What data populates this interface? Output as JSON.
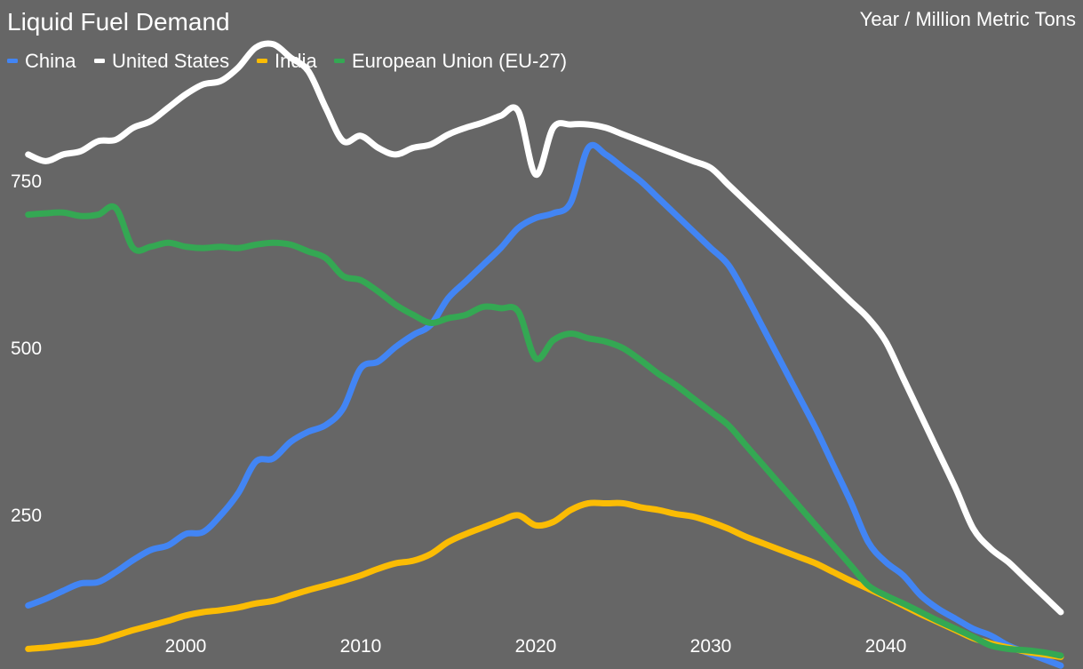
{
  "chart_data": {
    "type": "line",
    "title": "Liquid Fuel Demand",
    "subtitle": "Year / Million Metric Tons",
    "xlim": [
      1991,
      2050
    ],
    "ylim": [
      0,
      960
    ],
    "x_ticks": [
      2000,
      2010,
      2020,
      2030,
      2040
    ],
    "x_tick_labels": [
      "2000",
      "2010",
      "2020",
      "2030",
      "2040"
    ],
    "y_ticks": [
      250,
      500,
      750
    ],
    "y_tick_labels": [
      "250",
      "500",
      "750"
    ],
    "grid": false,
    "legend_position": "top-left",
    "series": [
      {
        "name": "China",
        "color": "#4285F4",
        "points": [
          [
            1991,
            115
          ],
          [
            1992,
            125
          ],
          [
            1993,
            137
          ],
          [
            1994,
            148
          ],
          [
            1995,
            150
          ],
          [
            1996,
            165
          ],
          [
            1997,
            183
          ],
          [
            1998,
            198
          ],
          [
            1999,
            205
          ],
          [
            2000,
            222
          ],
          [
            2001,
            225
          ],
          [
            2002,
            250
          ],
          [
            2003,
            283
          ],
          [
            2004,
            330
          ],
          [
            2005,
            335
          ],
          [
            2006,
            360
          ],
          [
            2007,
            375
          ],
          [
            2008,
            385
          ],
          [
            2009,
            410
          ],
          [
            2010,
            470
          ],
          [
            2011,
            480
          ],
          [
            2012,
            502
          ],
          [
            2013,
            520
          ],
          [
            2014,
            535
          ],
          [
            2015,
            575
          ],
          [
            2016,
            600
          ],
          [
            2017,
            625
          ],
          [
            2018,
            650
          ],
          [
            2019,
            680
          ],
          [
            2020,
            695
          ],
          [
            2021,
            702
          ],
          [
            2022,
            718
          ],
          [
            2023,
            800
          ],
          [
            2024,
            790
          ],
          [
            2025,
            770
          ],
          [
            2026,
            750
          ],
          [
            2027,
            725
          ],
          [
            2028,
            700
          ],
          [
            2029,
            675
          ],
          [
            2030,
            650
          ],
          [
            2031,
            625
          ],
          [
            2032,
            580
          ],
          [
            2033,
            530
          ],
          [
            2034,
            480
          ],
          [
            2035,
            430
          ],
          [
            2036,
            380
          ],
          [
            2037,
            325
          ],
          [
            2038,
            270
          ],
          [
            2039,
            210
          ],
          [
            2040,
            180
          ],
          [
            2041,
            160
          ],
          [
            2042,
            130
          ],
          [
            2043,
            110
          ],
          [
            2044,
            95
          ],
          [
            2045,
            80
          ],
          [
            2046,
            70
          ],
          [
            2047,
            55
          ],
          [
            2048,
            45
          ],
          [
            2049,
            35
          ],
          [
            2050,
            25
          ]
        ]
      },
      {
        "name": "United States",
        "color": "#FFFFFF",
        "points": [
          [
            1991,
            790
          ],
          [
            1992,
            780
          ],
          [
            1993,
            790
          ],
          [
            1994,
            795
          ],
          [
            1995,
            810
          ],
          [
            1996,
            812
          ],
          [
            1997,
            830
          ],
          [
            1998,
            840
          ],
          [
            1999,
            860
          ],
          [
            2000,
            880
          ],
          [
            2001,
            895
          ],
          [
            2002,
            900
          ],
          [
            2003,
            920
          ],
          [
            2004,
            950
          ],
          [
            2005,
            955
          ],
          [
            2006,
            935
          ],
          [
            2007,
            915
          ],
          [
            2008,
            860
          ],
          [
            2009,
            810
          ],
          [
            2010,
            818
          ],
          [
            2011,
            800
          ],
          [
            2012,
            790
          ],
          [
            2013,
            800
          ],
          [
            2014,
            805
          ],
          [
            2015,
            820
          ],
          [
            2016,
            830
          ],
          [
            2017,
            838
          ],
          [
            2018,
            848
          ],
          [
            2019,
            855
          ],
          [
            2020,
            760
          ],
          [
            2021,
            830
          ],
          [
            2022,
            835
          ],
          [
            2023,
            835
          ],
          [
            2024,
            830
          ],
          [
            2025,
            820
          ],
          [
            2026,
            810
          ],
          [
            2027,
            800
          ],
          [
            2028,
            790
          ],
          [
            2029,
            780
          ],
          [
            2030,
            770
          ],
          [
            2031,
            745
          ],
          [
            2032,
            720
          ],
          [
            2033,
            695
          ],
          [
            2034,
            670
          ],
          [
            2035,
            645
          ],
          [
            2036,
            620
          ],
          [
            2037,
            595
          ],
          [
            2038,
            570
          ],
          [
            2039,
            545
          ],
          [
            2040,
            510
          ],
          [
            2041,
            455
          ],
          [
            2042,
            400
          ],
          [
            2043,
            345
          ],
          [
            2044,
            290
          ],
          [
            2045,
            230
          ],
          [
            2046,
            200
          ],
          [
            2047,
            180
          ],
          [
            2048,
            155
          ],
          [
            2049,
            130
          ],
          [
            2050,
            105
          ]
        ]
      },
      {
        "name": "India",
        "color": "#FBBC04",
        "points": [
          [
            1991,
            50
          ],
          [
            1992,
            52
          ],
          [
            1993,
            55
          ],
          [
            1994,
            58
          ],
          [
            1995,
            62
          ],
          [
            1996,
            70
          ],
          [
            1997,
            78
          ],
          [
            1998,
            85
          ],
          [
            1999,
            92
          ],
          [
            2000,
            100
          ],
          [
            2001,
            105
          ],
          [
            2002,
            108
          ],
          [
            2003,
            112
          ],
          [
            2004,
            118
          ],
          [
            2005,
            122
          ],
          [
            2006,
            130
          ],
          [
            2007,
            138
          ],
          [
            2008,
            145
          ],
          [
            2009,
            152
          ],
          [
            2010,
            160
          ],
          [
            2011,
            170
          ],
          [
            2012,
            178
          ],
          [
            2013,
            182
          ],
          [
            2014,
            192
          ],
          [
            2015,
            210
          ],
          [
            2016,
            222
          ],
          [
            2017,
            232
          ],
          [
            2018,
            242
          ],
          [
            2019,
            250
          ],
          [
            2020,
            235
          ],
          [
            2021,
            240
          ],
          [
            2022,
            258
          ],
          [
            2023,
            268
          ],
          [
            2024,
            268
          ],
          [
            2025,
            268
          ],
          [
            2026,
            262
          ],
          [
            2027,
            258
          ],
          [
            2028,
            252
          ],
          [
            2029,
            248
          ],
          [
            2030,
            240
          ],
          [
            2031,
            230
          ],
          [
            2032,
            218
          ],
          [
            2033,
            208
          ],
          [
            2034,
            198
          ],
          [
            2035,
            188
          ],
          [
            2036,
            178
          ],
          [
            2037,
            165
          ],
          [
            2038,
            152
          ],
          [
            2039,
            140
          ],
          [
            2040,
            128
          ],
          [
            2041,
            115
          ],
          [
            2042,
            102
          ],
          [
            2043,
            90
          ],
          [
            2044,
            78
          ],
          [
            2045,
            66
          ],
          [
            2046,
            58
          ],
          [
            2047,
            52
          ],
          [
            2048,
            46
          ],
          [
            2049,
            42
          ],
          [
            2050,
            38
          ]
        ]
      },
      {
        "name": "European Union (EU-27)",
        "color": "#34A853",
        "points": [
          [
            1991,
            700
          ],
          [
            1992,
            702
          ],
          [
            1993,
            703
          ],
          [
            1994,
            698
          ],
          [
            1995,
            700
          ],
          [
            1996,
            710
          ],
          [
            1997,
            650
          ],
          [
            1998,
            652
          ],
          [
            1999,
            658
          ],
          [
            2000,
            652
          ],
          [
            2001,
            650
          ],
          [
            2002,
            652
          ],
          [
            2003,
            650
          ],
          [
            2004,
            655
          ],
          [
            2005,
            658
          ],
          [
            2006,
            655
          ],
          [
            2007,
            645
          ],
          [
            2008,
            635
          ],
          [
            2009,
            608
          ],
          [
            2010,
            602
          ],
          [
            2011,
            585
          ],
          [
            2012,
            565
          ],
          [
            2013,
            550
          ],
          [
            2014,
            538
          ],
          [
            2015,
            545
          ],
          [
            2016,
            550
          ],
          [
            2017,
            562
          ],
          [
            2018,
            560
          ],
          [
            2019,
            555
          ],
          [
            2020,
            485
          ],
          [
            2021,
            512
          ],
          [
            2022,
            522
          ],
          [
            2023,
            515
          ],
          [
            2024,
            510
          ],
          [
            2025,
            500
          ],
          [
            2026,
            482
          ],
          [
            2027,
            462
          ],
          [
            2028,
            445
          ],
          [
            2029,
            425
          ],
          [
            2030,
            405
          ],
          [
            2031,
            385
          ],
          [
            2032,
            355
          ],
          [
            2033,
            325
          ],
          [
            2034,
            295
          ],
          [
            2035,
            265
          ],
          [
            2036,
            235
          ],
          [
            2037,
            205
          ],
          [
            2038,
            175
          ],
          [
            2039,
            145
          ],
          [
            2040,
            130
          ],
          [
            2041,
            118
          ],
          [
            2042,
            105
          ],
          [
            2043,
            92
          ],
          [
            2044,
            80
          ],
          [
            2045,
            68
          ],
          [
            2046,
            55
          ],
          [
            2047,
            50
          ],
          [
            2048,
            48
          ],
          [
            2049,
            45
          ],
          [
            2050,
            40
          ]
        ]
      }
    ]
  }
}
